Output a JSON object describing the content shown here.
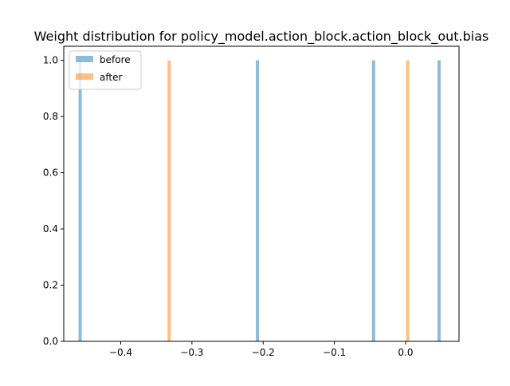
{
  "chart_data": {
    "type": "histogram",
    "title": "Weight distribution for policy_model.action_block.action_block_out.bias",
    "xlabel": "",
    "ylabel": "",
    "xlim": [
      -0.48,
      0.075
    ],
    "ylim": [
      0,
      1.05
    ],
    "xticks": [
      -0.4,
      -0.3,
      -0.2,
      -0.1,
      0.0
    ],
    "xtick_labels": [
      "−0.4",
      "−0.3",
      "−0.2",
      "−0.1",
      "0.0"
    ],
    "yticks": [
      0.0,
      0.2,
      0.4,
      0.6,
      0.8,
      1.0
    ],
    "ytick_labels": [
      "0.0",
      "0.2",
      "0.4",
      "0.6",
      "0.8",
      "1.0"
    ],
    "legend_position": "top-left",
    "grid": false,
    "series": [
      {
        "name": "before",
        "color": "#1f77b4",
        "opacity": 0.5,
        "x": [
          -0.457,
          -0.208,
          -0.045,
          0.047
        ],
        "values": [
          1,
          1,
          1,
          1
        ]
      },
      {
        "name": "after",
        "color": "#ff7f0e",
        "opacity": 0.5,
        "x": [
          -0.332,
          0.003
        ],
        "values": [
          1,
          1
        ]
      }
    ]
  }
}
